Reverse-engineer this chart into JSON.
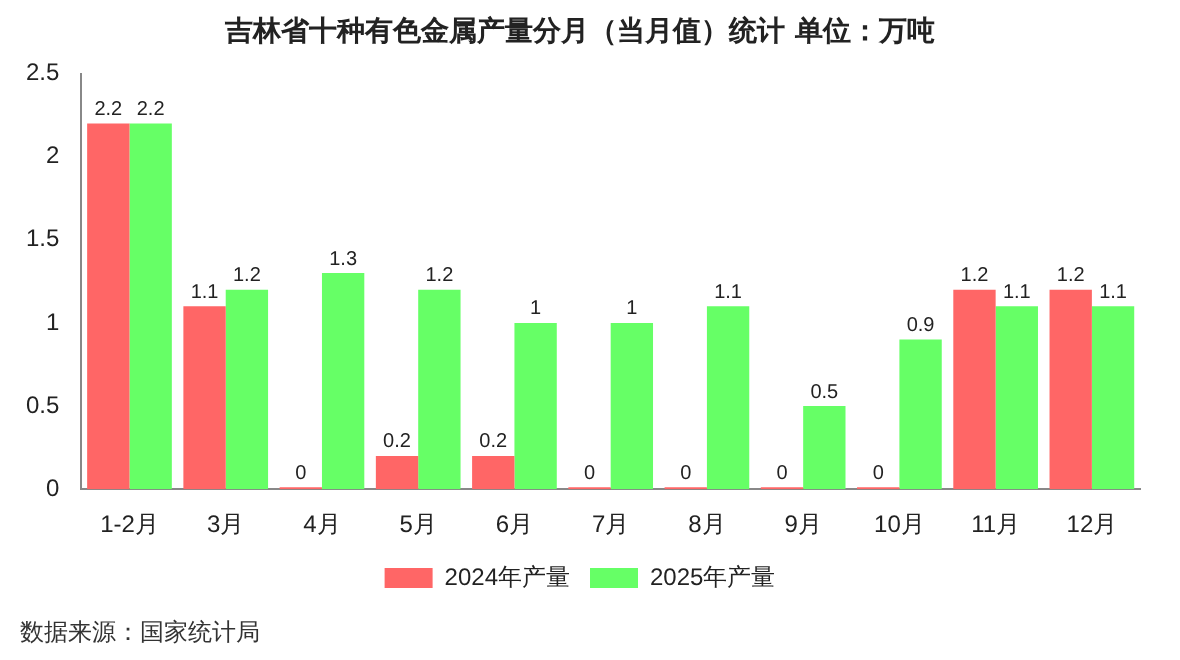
{
  "chart_data": {
    "type": "bar",
    "title": "吉林省十种有色金属产量分月（当月值）统计 单位：万吨",
    "categories": [
      "1-2月",
      "3月",
      "4月",
      "5月",
      "6月",
      "7月",
      "8月",
      "9月",
      "10月",
      "11月",
      "12月"
    ],
    "series": [
      {
        "name": "2024年产量",
        "color": "#ff6666",
        "values": [
          2.2,
          1.1,
          0,
          0.2,
          0.2,
          0,
          0,
          0,
          0,
          1.2,
          1.2
        ]
      },
      {
        "name": "2025年产量",
        "color": "#66ff66",
        "values": [
          2.2,
          1.2,
          1.3,
          1.2,
          1,
          1,
          1.1,
          0.5,
          0.9,
          1.1,
          1.1
        ]
      }
    ],
    "ylim": [
      0,
      2.5
    ],
    "yticks": [
      0,
      0.5,
      1,
      1.5,
      2,
      2.5
    ],
    "grid": false,
    "legend": "bottom",
    "data_labels": true,
    "annotations": [
      "数据来源：国家统计局"
    ]
  }
}
